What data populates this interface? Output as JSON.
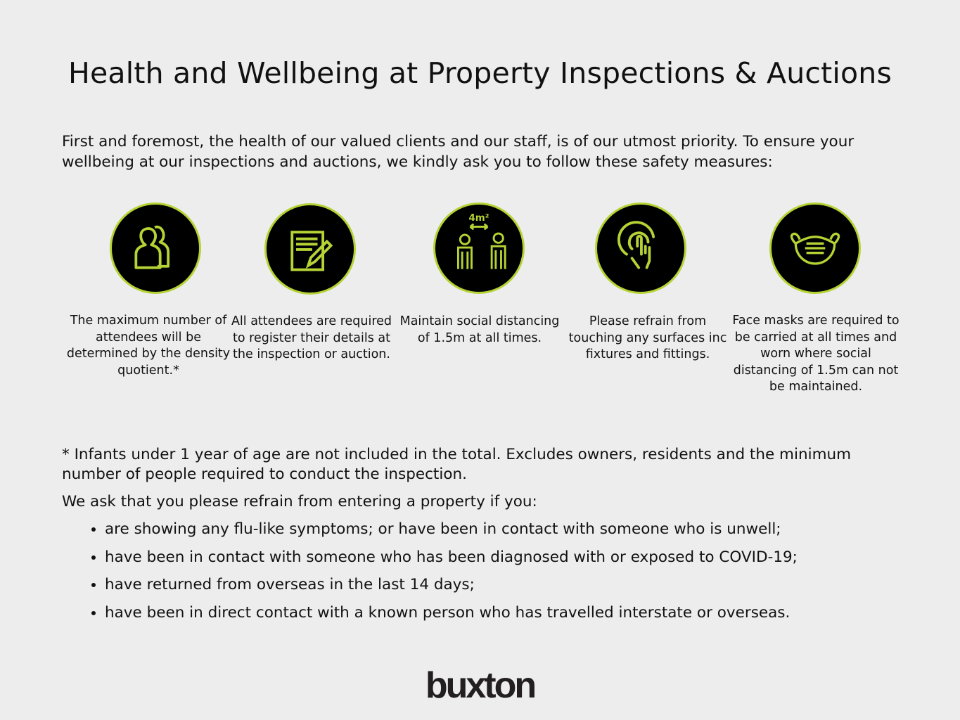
{
  "title": "Health and Wellbeing at Property Inspections & Auctions",
  "intro": "First and foremost, the health of our valued clients and our staff, is of our utmost priority. To ensure your wellbeing at our inspections and auctions, we kindly ask you to follow these safety measures:",
  "colors": {
    "accent": "#b5d334",
    "circle": "#000000",
    "background": "#ededee"
  },
  "measures": [
    {
      "icon": "people-icon",
      "caption": "The maximum number of attendees will be determined by the density quotient.*"
    },
    {
      "icon": "notepad-pencil-icon",
      "caption": "All attendees are required to register their details at the inspection or auction."
    },
    {
      "icon": "social-distance-icon",
      "icon_label": "4m²",
      "caption": "Maintain social distancing of 1.5m at all times."
    },
    {
      "icon": "touch-hand-icon",
      "caption": "Please refrain from touching any surfaces inc fixtures and fittings."
    },
    {
      "icon": "face-mask-icon",
      "caption": "Face masks are required to be carried at all times and worn where social distancing of 1.5m can not be maintained."
    }
  ],
  "footnote": "* Infants under 1 year of age are not included in the total. Excludes owners, residents and the minimum number of people required to conduct the inspection.",
  "ask_intro": "We ask that you please refrain from entering a property if you:",
  "bullets": [
    "are showing any flu-like symptoms; or have been in contact with someone who is unwell;",
    "have been in contact with someone who has been diagnosed with or exposed to COVID-19;",
    "have returned from overseas in the last 14 days;",
    "have been in direct contact with a known person who has travelled interstate or overseas."
  ],
  "logo": "buxton"
}
